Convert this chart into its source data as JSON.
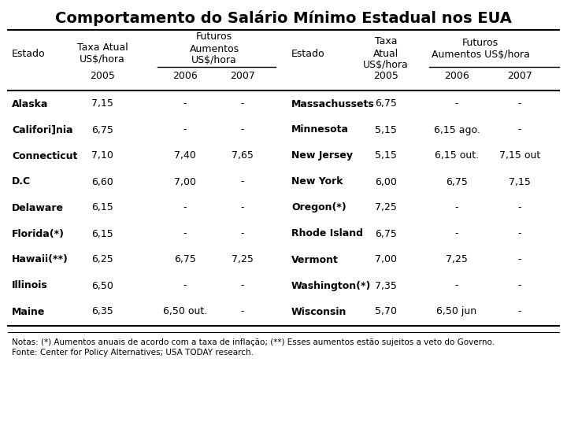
{
  "title": "Comportamento do Salário Mínimo Estadual nos EUA",
  "left_data": [
    [
      "Alaska",
      "7,15",
      "-",
      "-"
    ],
    [
      "Califori]nia",
      "6,75",
      "-",
      "-"
    ],
    [
      "Connecticut",
      "7,10",
      "7,40",
      "7,65"
    ],
    [
      "D.C",
      "6,60",
      "7,00",
      "-"
    ],
    [
      "Delaware",
      "6,15",
      "-",
      "-"
    ],
    [
      "Florida(*)",
      "6,15",
      "-",
      "-"
    ],
    [
      "Hawaii(**)",
      "6,25",
      "6,75",
      "7,25"
    ],
    [
      "Illinois",
      "6,50",
      "-",
      "-"
    ],
    [
      "Maine",
      "6,35",
      "6,50 out.",
      "-"
    ]
  ],
  "right_data": [
    [
      "Massachussets",
      "6,75",
      "-",
      "-"
    ],
    [
      "Minnesota",
      "5,15",
      "6,15 ago.",
      "-"
    ],
    [
      "New Jersey",
      "5,15",
      "6,15 out.",
      "7,15 out"
    ],
    [
      "New York",
      "6,00",
      "6,75",
      "7,15"
    ],
    [
      "Oregon(*)",
      "7,25",
      "-",
      "-"
    ],
    [
      "Rhode Island",
      "6,75",
      "-",
      "-"
    ],
    [
      "Vermont",
      "7,00",
      "7,25",
      "-"
    ],
    [
      "Washington(*)",
      "7,35",
      "-",
      "-"
    ],
    [
      "Wisconsin",
      "5,70",
      "6,50 jun",
      "-"
    ]
  ],
  "notes_line1": "Notas: (*) Aumentos anuais de acordo com a taxa de inflação; (**) Esses aumentos estão sujeitos a veto do Governo.",
  "notes_line2": "Fonte: Center for Policy Alternatives; USA TODAY research.",
  "bg_color": "#ffffff"
}
